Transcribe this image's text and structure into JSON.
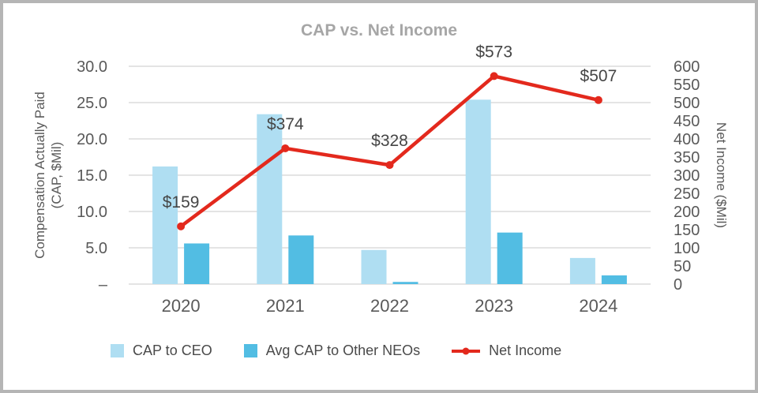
{
  "title": "CAP vs. Net Income",
  "left_axis": {
    "title_line1": "Compensation Actually Paid",
    "title_line2": "(CAP, $Mil)",
    "ticks": [
      "30.0",
      "25.0",
      "20.0",
      "15.0",
      "10.0",
      "5.0",
      "–"
    ]
  },
  "right_axis": {
    "title": "Net Income ($Mil)",
    "ticks": [
      "600",
      "550",
      "500",
      "450",
      "400",
      "350",
      "300",
      "250",
      "200",
      "150",
      "100",
      "50",
      "0"
    ]
  },
  "chart_data": {
    "type": "combo",
    "title": "CAP vs. Net Income",
    "categories": [
      "2020",
      "2021",
      "2022",
      "2023",
      "2024"
    ],
    "left_ylabel": "Compensation Actually Paid (CAP, $Mil)",
    "right_ylabel": "Net Income ($Mil)",
    "left_ylim": [
      0,
      30
    ],
    "right_ylim": [
      0,
      600
    ],
    "grid": true,
    "legend_position": "bottom",
    "series": [
      {
        "name": "CAP to CEO",
        "type": "bar",
        "axis": "left",
        "color": "#AFDEF2",
        "values": [
          16.2,
          23.4,
          4.7,
          25.4,
          3.6
        ]
      },
      {
        "name": "Avg CAP to Other NEOs",
        "type": "bar",
        "axis": "left",
        "color": "#52BDE3",
        "values": [
          5.6,
          6.7,
          0.3,
          7.1,
          1.2
        ]
      },
      {
        "name": "Net Income",
        "type": "line",
        "axis": "right",
        "color": "#E3291D",
        "values": [
          159,
          374,
          328,
          573,
          507
        ],
        "labels": [
          "$159",
          "$374",
          "$328",
          "$573",
          "$507"
        ]
      }
    ]
  },
  "colors": {
    "grid": "#DCDCDC",
    "axis_text": "#595959",
    "data_label_text": "#454545",
    "title_text": "#A6A6A6",
    "frame_border": "#B5B5B5",
    "cap_ceo_bar": "#AFDEF2",
    "other_neo_bar": "#52BDE3",
    "net_income_line": "#E3291D"
  }
}
